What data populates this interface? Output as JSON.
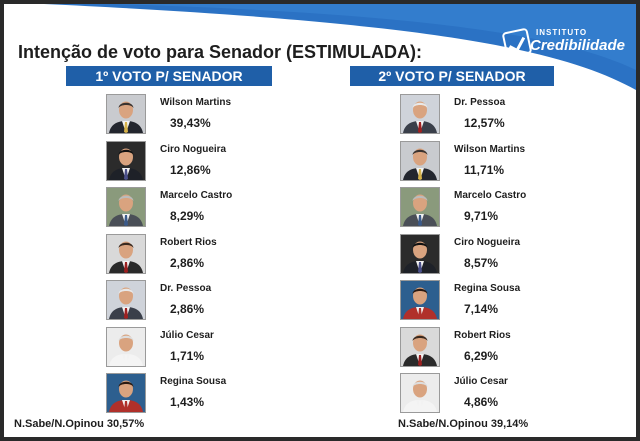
{
  "title": "Intenção de voto para Senador (ESTIMULADA):",
  "logo": {
    "top": "INSTITUTO",
    "main": "Credibilidade"
  },
  "colors": {
    "header_bg": "#1f5fa8",
    "swoosh": "#2b72c4"
  },
  "first_vote": {
    "header": "1º VOTO P/ SENADOR",
    "candidates": [
      {
        "name": "Wilson Martins",
        "percent": "39,43%",
        "bg": "#c9cbcf",
        "suit": "#23262e",
        "tie": "#d6b24a",
        "hair": "#3a3330"
      },
      {
        "name": "Ciro Nogueira",
        "percent": "12,86%",
        "bg": "#2b2b2b",
        "suit": "#1e2128",
        "tie": "#4a4f8a",
        "hair": "#111111"
      },
      {
        "name": "Marcelo Castro",
        "percent": "8,29%",
        "bg": "#8a9a7c",
        "suit": "#4a4f57",
        "tie": "#3a5a8a",
        "hair": "#bbbbbb"
      },
      {
        "name": "Robert Rios",
        "percent": "2,86%",
        "bg": "#d9d9d9",
        "suit": "#2a2a2a",
        "tie": "#9c1f1f",
        "hair": "#3a2a20"
      },
      {
        "name": "Dr. Pessoa",
        "percent": "2,86%",
        "bg": "#cfd3da",
        "suit": "#3a3f4a",
        "tie": "#a02020",
        "hair": "#e8e8e8"
      },
      {
        "name": "Júlio Cesar",
        "percent": "1,71%",
        "bg": "#ececec",
        "suit": "#f4f4f4",
        "tie": "#f4f4f4",
        "hair": "#dddddd"
      },
      {
        "name": "Regina Sousa",
        "percent": "1,43%",
        "bg": "#2d5f8f",
        "suit": "#b0302a",
        "tie": "#b0302a",
        "hair": "#2a1a12"
      }
    ],
    "footer": "N.Sabe/N.Opinou 30,57%"
  },
  "second_vote": {
    "header": "2º VOTO P/ SENADOR",
    "candidates": [
      {
        "name": "Dr. Pessoa",
        "percent": "12,57%",
        "bg": "#cfd3da",
        "suit": "#3a3f4a",
        "tie": "#a02020",
        "hair": "#e8e8e8"
      },
      {
        "name": "Wilson Martins",
        "percent": "11,71%",
        "bg": "#c9cbcf",
        "suit": "#23262e",
        "tie": "#d6b24a",
        "hair": "#3a3330"
      },
      {
        "name": "Marcelo Castro",
        "percent": "9,71%",
        "bg": "#8a9a7c",
        "suit": "#4a4f57",
        "tie": "#3a5a8a",
        "hair": "#bbbbbb"
      },
      {
        "name": "Ciro Nogueira",
        "percent": "8,57%",
        "bg": "#2b2b2b",
        "suit": "#1e2128",
        "tie": "#4a4f8a",
        "hair": "#111111"
      },
      {
        "name": "Regina Sousa",
        "percent": "7,14%",
        "bg": "#2d5f8f",
        "suit": "#b0302a",
        "tie": "#b0302a",
        "hair": "#2a1a12"
      },
      {
        "name": "Robert Rios",
        "percent": "6,29%",
        "bg": "#d9d9d9",
        "suit": "#2a2a2a",
        "tie": "#9c1f1f",
        "hair": "#3a2a20"
      },
      {
        "name": "Júlio Cesar",
        "percent": "4,86%",
        "bg": "#ececec",
        "suit": "#f4f4f4",
        "tie": "#f4f4f4",
        "hair": "#dddddd"
      }
    ],
    "footer": "N.Sabe/N.Opinou 39,14%"
  }
}
